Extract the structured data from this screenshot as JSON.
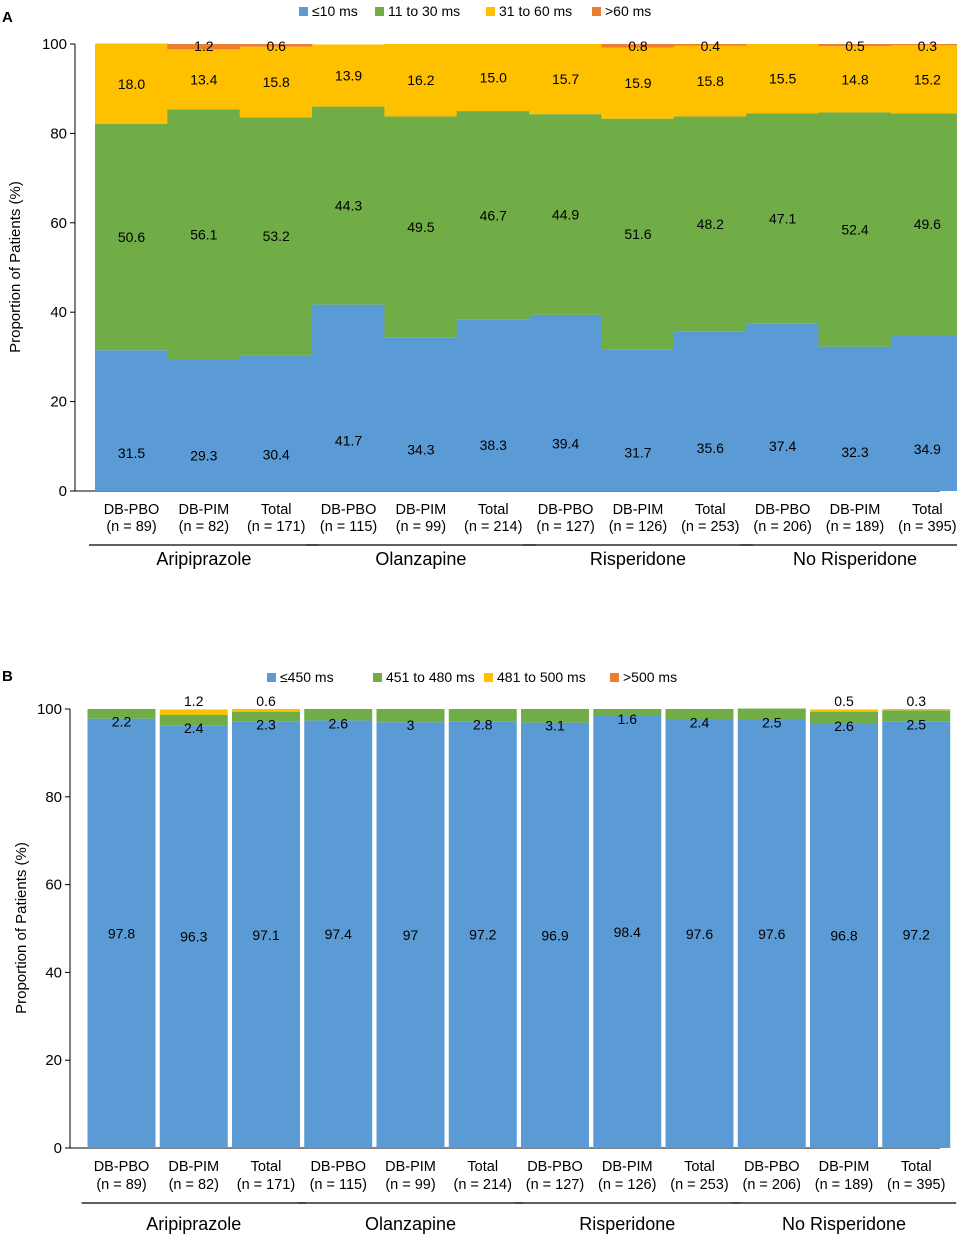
{
  "chart_data": [
    {
      "panel": "A",
      "type": "bar",
      "stacked": true,
      "ylabel": "Proportion of Patients (%)",
      "ylim": [
        0,
        100
      ],
      "yticks": [
        "0",
        "20",
        "40",
        "60",
        "80",
        "100"
      ],
      "categories": [
        "DB-PBO",
        "DB-PIM",
        "Total",
        "DB-PBO",
        "DB-PIM",
        "Total",
        "DB-PBO",
        "DB-PIM",
        "Total",
        "DB-PBO",
        "DB-PIM",
        "Total"
      ],
      "category_n": [
        "(n = 89)",
        "(n = 82)",
        "(n = 171)",
        "(n = 115)",
        "(n = 99)",
        "(n = 214)",
        "(n = 127)",
        "(n = 126)",
        "(n = 253)",
        "(n = 206)",
        "(n = 189)",
        "(n = 395)"
      ],
      "groups": [
        "Aripiprazole",
        "Olanzapine",
        "Risperidone",
        "No Risperidone"
      ],
      "series": [
        {
          "name": "≤10 ms",
          "color": "#5b9bd5",
          "values": [
            31.5,
            29.3,
            30.4,
            41.7,
            34.3,
            38.3,
            39.4,
            31.7,
            35.6,
            37.4,
            32.3,
            34.9
          ],
          "labels": [
            "31.5",
            "29.3",
            "30.4",
            "41.7",
            "34.3",
            "38.3",
            "39.4",
            "31.7",
            "35.6",
            "37.4",
            "32.3",
            "34.9"
          ]
        },
        {
          "name": "11 to 30 ms",
          "color": "#70ad47",
          "values": [
            50.6,
            56.1,
            53.2,
            44.3,
            49.5,
            46.7,
            44.9,
            51.6,
            48.2,
            47.1,
            52.4,
            49.6
          ],
          "labels": [
            "50.6",
            "56.1",
            "53.2",
            "44.3",
            "49.5",
            "46.7",
            "44.9",
            "51.6",
            "48.2",
            "47.1",
            "52.4",
            "49.6"
          ]
        },
        {
          "name": "31 to 60 ms",
          "color": "#ffc000",
          "values": [
            18.0,
            13.4,
            15.8,
            13.9,
            16.2,
            15.0,
            15.7,
            15.9,
            15.8,
            15.5,
            14.8,
            15.2
          ],
          "labels": [
            "18.0",
            "13.4",
            "15.8",
            "13.9",
            "16.2",
            "15.0",
            "15.7",
            "15.9",
            "15.8",
            "15.5",
            "14.8",
            "15.2"
          ]
        },
        {
          "name": ">60 ms",
          "color": "#ed7d31",
          "values": [
            0,
            1.2,
            0.6,
            0,
            0,
            0,
            0,
            0.8,
            0.4,
            0,
            0.5,
            0.3
          ],
          "labels": [
            "",
            "1.2",
            "0.6",
            "",
            "",
            "",
            "",
            "0.8",
            "0.4",
            "",
            "0.5",
            "0.3"
          ]
        }
      ]
    },
    {
      "panel": "B",
      "type": "bar",
      "stacked": true,
      "ylabel": "Proportion of Patients (%)",
      "ylim": [
        0,
        100
      ],
      "yticks": [
        "0",
        "20",
        "40",
        "60",
        "80",
        "100"
      ],
      "categories": [
        "DB-PBO",
        "DB-PIM",
        "Total",
        "DB-PBO",
        "DB-PIM",
        "Total",
        "DB-PBO",
        "DB-PIM",
        "Total",
        "DB-PBO",
        "DB-PIM",
        "Total"
      ],
      "category_n": [
        "(n = 89)",
        "(n = 82)",
        "(n = 171)",
        "(n = 115)",
        "(n = 99)",
        "(n = 214)",
        "(n = 127)",
        "(n = 126)",
        "(n = 253)",
        "(n = 206)",
        "(n = 189)",
        "(n = 395)"
      ],
      "groups": [
        "Aripiprazole",
        "Olanzapine",
        "Risperidone",
        "No Risperidone"
      ],
      "series": [
        {
          "name": "≤450 ms",
          "color": "#5b9bd5",
          "values": [
            97.8,
            96.3,
            97.1,
            97.4,
            97,
            97.2,
            96.9,
            98.4,
            97.6,
            97.6,
            96.8,
            97.2
          ],
          "labels": [
            "97.8",
            "96.3",
            "97.1",
            "97.4",
            "97",
            "97.2",
            "96.9",
            "98.4",
            "97.6",
            "97.6",
            "96.8",
            "97.2"
          ]
        },
        {
          "name": "451 to 480 ms",
          "color": "#70ad47",
          "values": [
            2.2,
            2.4,
            2.3,
            2.6,
            3,
            2.8,
            3.1,
            1.6,
            2.4,
            2.5,
            2.6,
            2.5
          ],
          "labels": [
            "2.2",
            "2.4",
            "2.3",
            "2.6",
            "3",
            "2.8",
            "3.1",
            "1.6",
            "2.4",
            "2.5",
            "2.6",
            "2.5"
          ]
        },
        {
          "name": "481 to 500 ms",
          "color": "#ffc000",
          "values": [
            0,
            1.2,
            0.6,
            0,
            0,
            0,
            0,
            0,
            0,
            0,
            0.5,
            0.3
          ],
          "labels": [
            "",
            "1.2",
            "0.6",
            "",
            "",
            "",
            "",
            "",
            "",
            "",
            "0.5",
            "0.3"
          ]
        },
        {
          "name": ">500 ms",
          "color": "#ed7d31",
          "values": [
            0,
            0,
            0,
            0,
            0,
            0,
            0,
            0,
            0,
            0,
            0,
            0
          ],
          "labels": [
            "",
            "",
            "",
            "",
            "",
            "",
            "",
            "",
            "",
            "",
            "",
            ""
          ]
        }
      ]
    }
  ]
}
